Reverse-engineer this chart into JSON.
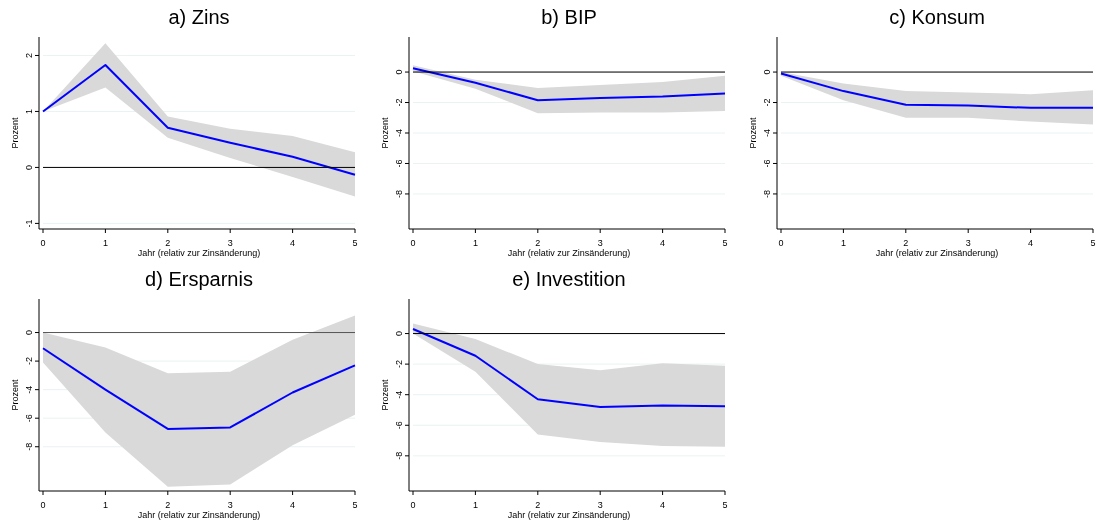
{
  "chart_data": [
    {
      "type": "line",
      "title": "a) Zins",
      "xlabel": "Jahr (relativ zur Zinsänderung)",
      "ylabel": "Prozent",
      "x": [
        0,
        1,
        2,
        3,
        4,
        5
      ],
      "xlim": [
        0,
        5
      ],
      "xticks": [
        0,
        1,
        2,
        3,
        4,
        5
      ],
      "ylim": [
        -1.1,
        2.33
      ],
      "yticks": [
        -1,
        0,
        1,
        2
      ],
      "grid": "y",
      "ref_lines": [
        {
          "axis": "y",
          "value": 0,
          "color": "#000000"
        }
      ],
      "series": [
        {
          "color": "#0000ff",
          "values": [
            1.0,
            1.83,
            0.71,
            0.44,
            0.19,
            -0.13
          ],
          "lower": [
            1.0,
            1.43,
            0.53,
            0.17,
            -0.17,
            -0.52
          ],
          "upper": [
            1.0,
            2.22,
            0.91,
            0.69,
            0.56,
            0.27
          ]
        }
      ]
    },
    {
      "type": "line",
      "title": "b) BIP",
      "xlabel": "Jahr (relativ zur Zinsänderung)",
      "ylabel": "Prozent",
      "x": [
        0,
        1,
        2,
        3,
        4,
        5
      ],
      "xlim": [
        0,
        5
      ],
      "xticks": [
        0,
        1,
        2,
        3,
        4,
        5
      ],
      "ylim": [
        -10.3,
        2.3
      ],
      "yticks": [
        -8,
        -6,
        -4,
        -2,
        0
      ],
      "grid": "y",
      "ref_lines": [
        {
          "axis": "y",
          "value": 0,
          "color": "#000000"
        }
      ],
      "series": [
        {
          "color": "#0000ff",
          "values": [
            0.25,
            -0.7,
            -1.85,
            -1.7,
            -1.6,
            -1.4
          ],
          "lower": [
            0.05,
            -1.1,
            -2.7,
            -2.65,
            -2.65,
            -2.55
          ],
          "upper": [
            0.45,
            -0.5,
            -1.05,
            -0.85,
            -0.65,
            -0.25
          ]
        }
      ]
    },
    {
      "type": "line",
      "title": "c) Konsum",
      "xlabel": "Jahr (relativ zur Zinsänderung)",
      "ylabel": "Prozent",
      "x": [
        0,
        1,
        2,
        3,
        4,
        5
      ],
      "xlim": [
        0,
        5
      ],
      "xticks": [
        0,
        1,
        2,
        3,
        4,
        5
      ],
      "ylim": [
        -10.3,
        2.3
      ],
      "yticks": [
        -8,
        -6,
        -4,
        -2,
        0
      ],
      "grid": "y",
      "ref_lines": [
        {
          "axis": "y",
          "value": 0,
          "color": "#000000"
        }
      ],
      "series": [
        {
          "color": "#0000ff",
          "values": [
            -0.1,
            -1.25,
            -2.15,
            -2.2,
            -2.35,
            -2.35
          ],
          "lower": [
            -0.25,
            -1.85,
            -3.0,
            -3.0,
            -3.25,
            -3.45
          ],
          "upper": [
            0.0,
            -0.75,
            -1.25,
            -1.35,
            -1.45,
            -1.2
          ]
        }
      ]
    },
    {
      "type": "line",
      "title": "d) Ersparnis",
      "xlabel": "Jahr (relativ zur Zinsänderung)",
      "ylabel": "Prozent",
      "x": [
        0,
        1,
        2,
        3,
        4,
        5
      ],
      "xlim": [
        0,
        5
      ],
      "xticks": [
        0,
        1,
        2,
        3,
        4,
        5
      ],
      "ylim": [
        -11.1,
        2.35
      ],
      "yticks": [
        -8,
        -6,
        -4,
        -2,
        0
      ],
      "grid": "y",
      "ref_lines": [
        {
          "axis": "y",
          "value": 0,
          "color": "#555555"
        }
      ],
      "series": [
        {
          "color": "#0000ff",
          "values": [
            -1.1,
            -4.0,
            -6.75,
            -6.65,
            -4.2,
            -2.3
          ],
          "lower": [
            -2.1,
            -7.0,
            -10.8,
            -10.65,
            -7.9,
            -5.75
          ],
          "upper": [
            0.0,
            -1.05,
            -2.85,
            -2.75,
            -0.5,
            1.2
          ]
        }
      ]
    },
    {
      "type": "line",
      "title": "e) Investition",
      "xlabel": "Jahr (relativ zur Zinsänderung)",
      "ylabel": "Prozent",
      "x": [
        0,
        1,
        2,
        3,
        4,
        5
      ],
      "xlim": [
        0,
        5
      ],
      "xticks": [
        0,
        1,
        2,
        3,
        4,
        5
      ],
      "ylim": [
        -10.3,
        2.26
      ],
      "yticks": [
        -8,
        -6,
        -4,
        -2,
        0
      ],
      "grid": "y",
      "ref_lines": [
        {
          "axis": "y",
          "value": 0,
          "color": "#000000"
        }
      ],
      "series": [
        {
          "color": "#0000ff",
          "values": [
            0.3,
            -1.45,
            -4.3,
            -4.8,
            -4.7,
            -4.75
          ],
          "lower": [
            0.0,
            -2.5,
            -6.6,
            -7.1,
            -7.35,
            -7.4
          ],
          "upper": [
            0.65,
            -0.35,
            -2.0,
            -2.4,
            -1.95,
            -2.1
          ]
        }
      ]
    }
  ]
}
